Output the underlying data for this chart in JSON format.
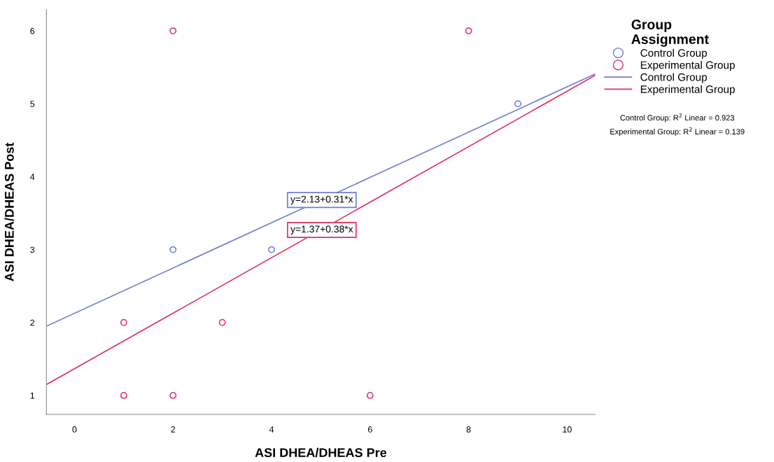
{
  "chart_data": {
    "type": "scatter",
    "xlabel": "ASI DHEA/DHEAS Pre",
    "ylabel": "ASI DHEA/DHEAS Post",
    "legend_title": "Group\nAssignment",
    "xlim": [
      -0.57,
      10.57
    ],
    "ylim": [
      0.74,
      6.29
    ],
    "xticks": [
      0,
      2,
      4,
      6,
      8,
      10
    ],
    "yticks": [
      1,
      2,
      3,
      4,
      5,
      6
    ],
    "grid": false,
    "legend": "right",
    "marker": "circle",
    "series": [
      {
        "name": "Control Group",
        "color": "#6f7fcf",
        "x": [
          2,
          4,
          9
        ],
        "values": [
          3,
          3,
          5
        ]
      },
      {
        "name": "Experimental Group",
        "color": "#e0305a",
        "x": [
          1,
          1,
          2,
          2,
          3,
          6,
          8
        ],
        "values": [
          2,
          1,
          6,
          1,
          2,
          1,
          6
        ]
      },
      {
        "name": "Control Group",
        "type": "line",
        "marker": "none",
        "color": "#6f7fcf",
        "x": [
          -0.57,
          10.57
        ],
        "values": [
          1.95,
          5.41
        ]
      },
      {
        "name": "Experimental Group",
        "type": "line",
        "marker": "none",
        "color": "#e0305a",
        "x": [
          -0.57,
          10.57
        ],
        "values": [
          1.15,
          5.39
        ]
      }
    ],
    "annotations": [
      {
        "text": "y=2.13+0.31*x",
        "x": 5.02,
        "y": 3.68
      },
      {
        "text": "y=1.37+0.38*x",
        "x": 5.02,
        "y": 3.27
      },
      "Control Group: R$^{2}$ Linear = 0.923",
      "Experimental Group: R$^{2}$ Linear = 0.139"
    ]
  }
}
